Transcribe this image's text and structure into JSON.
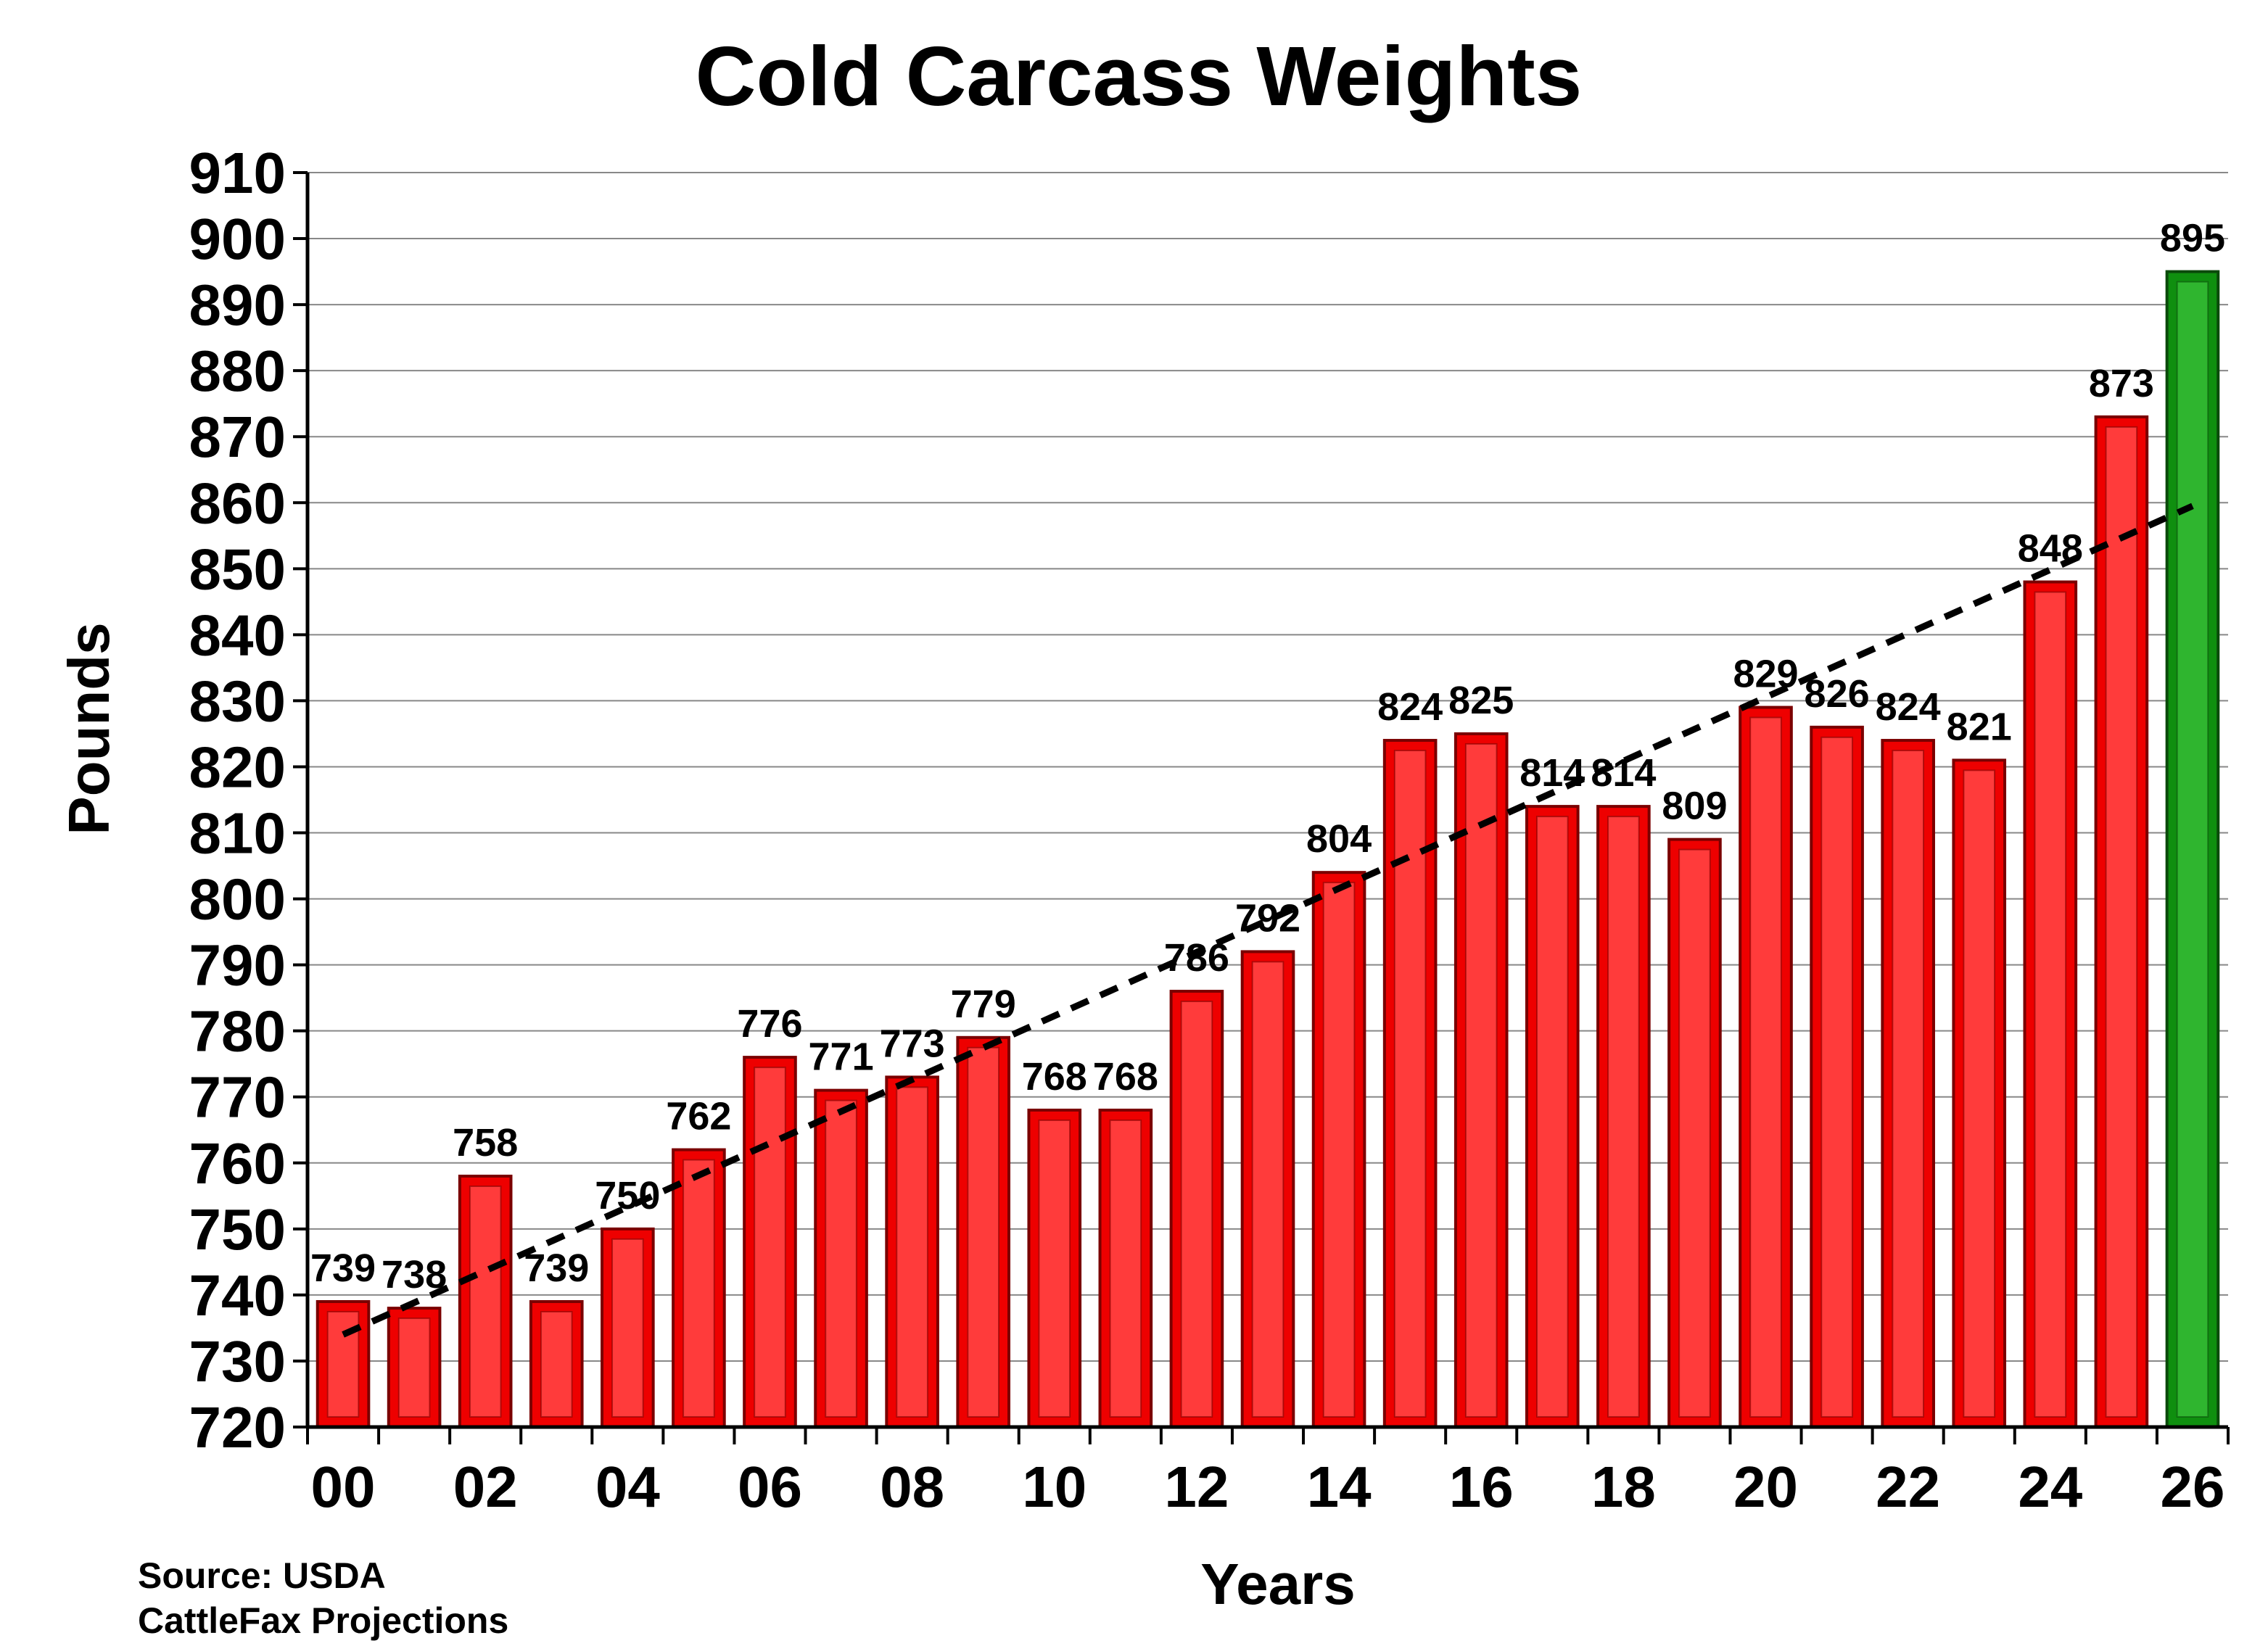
{
  "chart_data": {
    "type": "bar",
    "title": "Cold Carcass Weights",
    "xlabel": "Years",
    "ylabel": "Pounds",
    "ylim": [
      720,
      910
    ],
    "y_ticks": [
      "720",
      "730",
      "740",
      "750",
      "760",
      "770",
      "780",
      "790",
      "800",
      "810",
      "820",
      "830",
      "840",
      "850",
      "860",
      "870",
      "880",
      "890",
      "900",
      "910"
    ],
    "x_ticks": [
      "00",
      "02",
      "04",
      "06",
      "08",
      "10",
      "12",
      "14",
      "16",
      "18",
      "20",
      "22",
      "24",
      "26"
    ],
    "categories": [
      "00",
      "01",
      "02",
      "03",
      "04",
      "05",
      "06",
      "07",
      "08",
      "09",
      "10",
      "11",
      "12",
      "13",
      "14",
      "15",
      "16",
      "17",
      "18",
      "19",
      "20",
      "21",
      "22",
      "23",
      "24",
      "25",
      "26"
    ],
    "values": [
      739,
      738,
      758,
      739,
      750,
      762,
      776,
      771,
      773,
      779,
      768,
      768,
      786,
      792,
      804,
      824,
      825,
      814,
      814,
      809,
      829,
      826,
      824,
      821,
      848,
      873,
      895
    ],
    "data_labels": [
      "739",
      "738",
      "758",
      "739",
      "750",
      "762",
      "776",
      "771",
      "773",
      "779",
      "768",
      "768",
      "786",
      "792",
      "804",
      "824",
      "825",
      "814",
      "814",
      "809",
      "829",
      "826",
      "824",
      "821",
      "848",
      "873",
      "895"
    ],
    "projection_index": 26,
    "trendline": {
      "style": "dashed",
      "start": 734,
      "end": 859.5
    },
    "grid": true,
    "colors": {
      "bar": "#ee0000",
      "bar_inner": "#ff3b3b",
      "bar_edge": "#7a0000",
      "projection_bar": "#0f8f0f",
      "projection_inner": "#2fb52f",
      "projection_edge": "#0a4a0a",
      "trend": "#000000",
      "grid": "#888888",
      "axis": "#000000"
    }
  },
  "source": {
    "line1": "Source: USDA",
    "line2": "CattleFax Projections"
  }
}
